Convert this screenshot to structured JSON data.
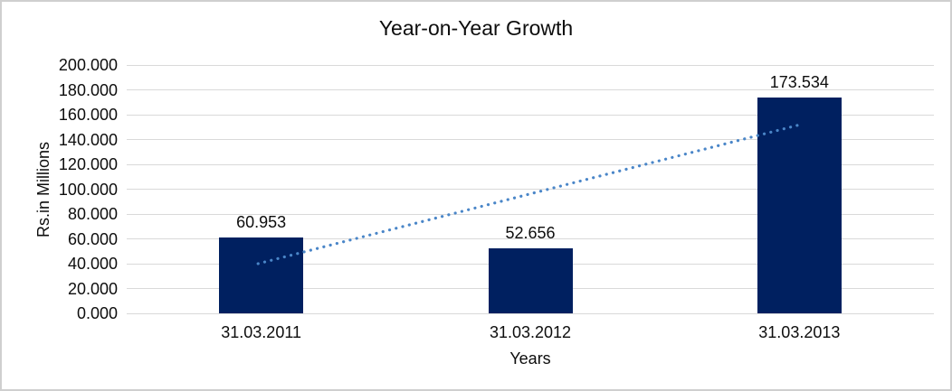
{
  "chart_data": {
    "type": "bar",
    "title": "Year-on-Year Growth",
    "xlabel": "Years",
    "ylabel": "Rs.in Millions",
    "categories": [
      "31.03.2011",
      "31.03.2012",
      "31.03.2013"
    ],
    "values": [
      60.953,
      52.656,
      173.534
    ],
    "value_labels": [
      "60.953",
      "52.656",
      "173.534"
    ],
    "ylim": [
      0,
      200
    ],
    "y_tick_step": 20,
    "y_tick_labels": [
      "0.000",
      "20.000",
      "40.000",
      "60.000",
      "80.000",
      "100.000",
      "120.000",
      "140.000",
      "160.000",
      "180.000",
      "200.000"
    ],
    "grid": true,
    "legend_position": "none",
    "colors": {
      "bar": "#002060",
      "gridline": "#d9d9d9",
      "trendline": "#4a86c8",
      "text": "#0d0d0d"
    },
    "trendline": {
      "style": "dotted",
      "color": "#4a86c8",
      "start": {
        "category_index": 0,
        "value": 40
      },
      "end": {
        "category_index": 2,
        "value": 152
      }
    }
  }
}
